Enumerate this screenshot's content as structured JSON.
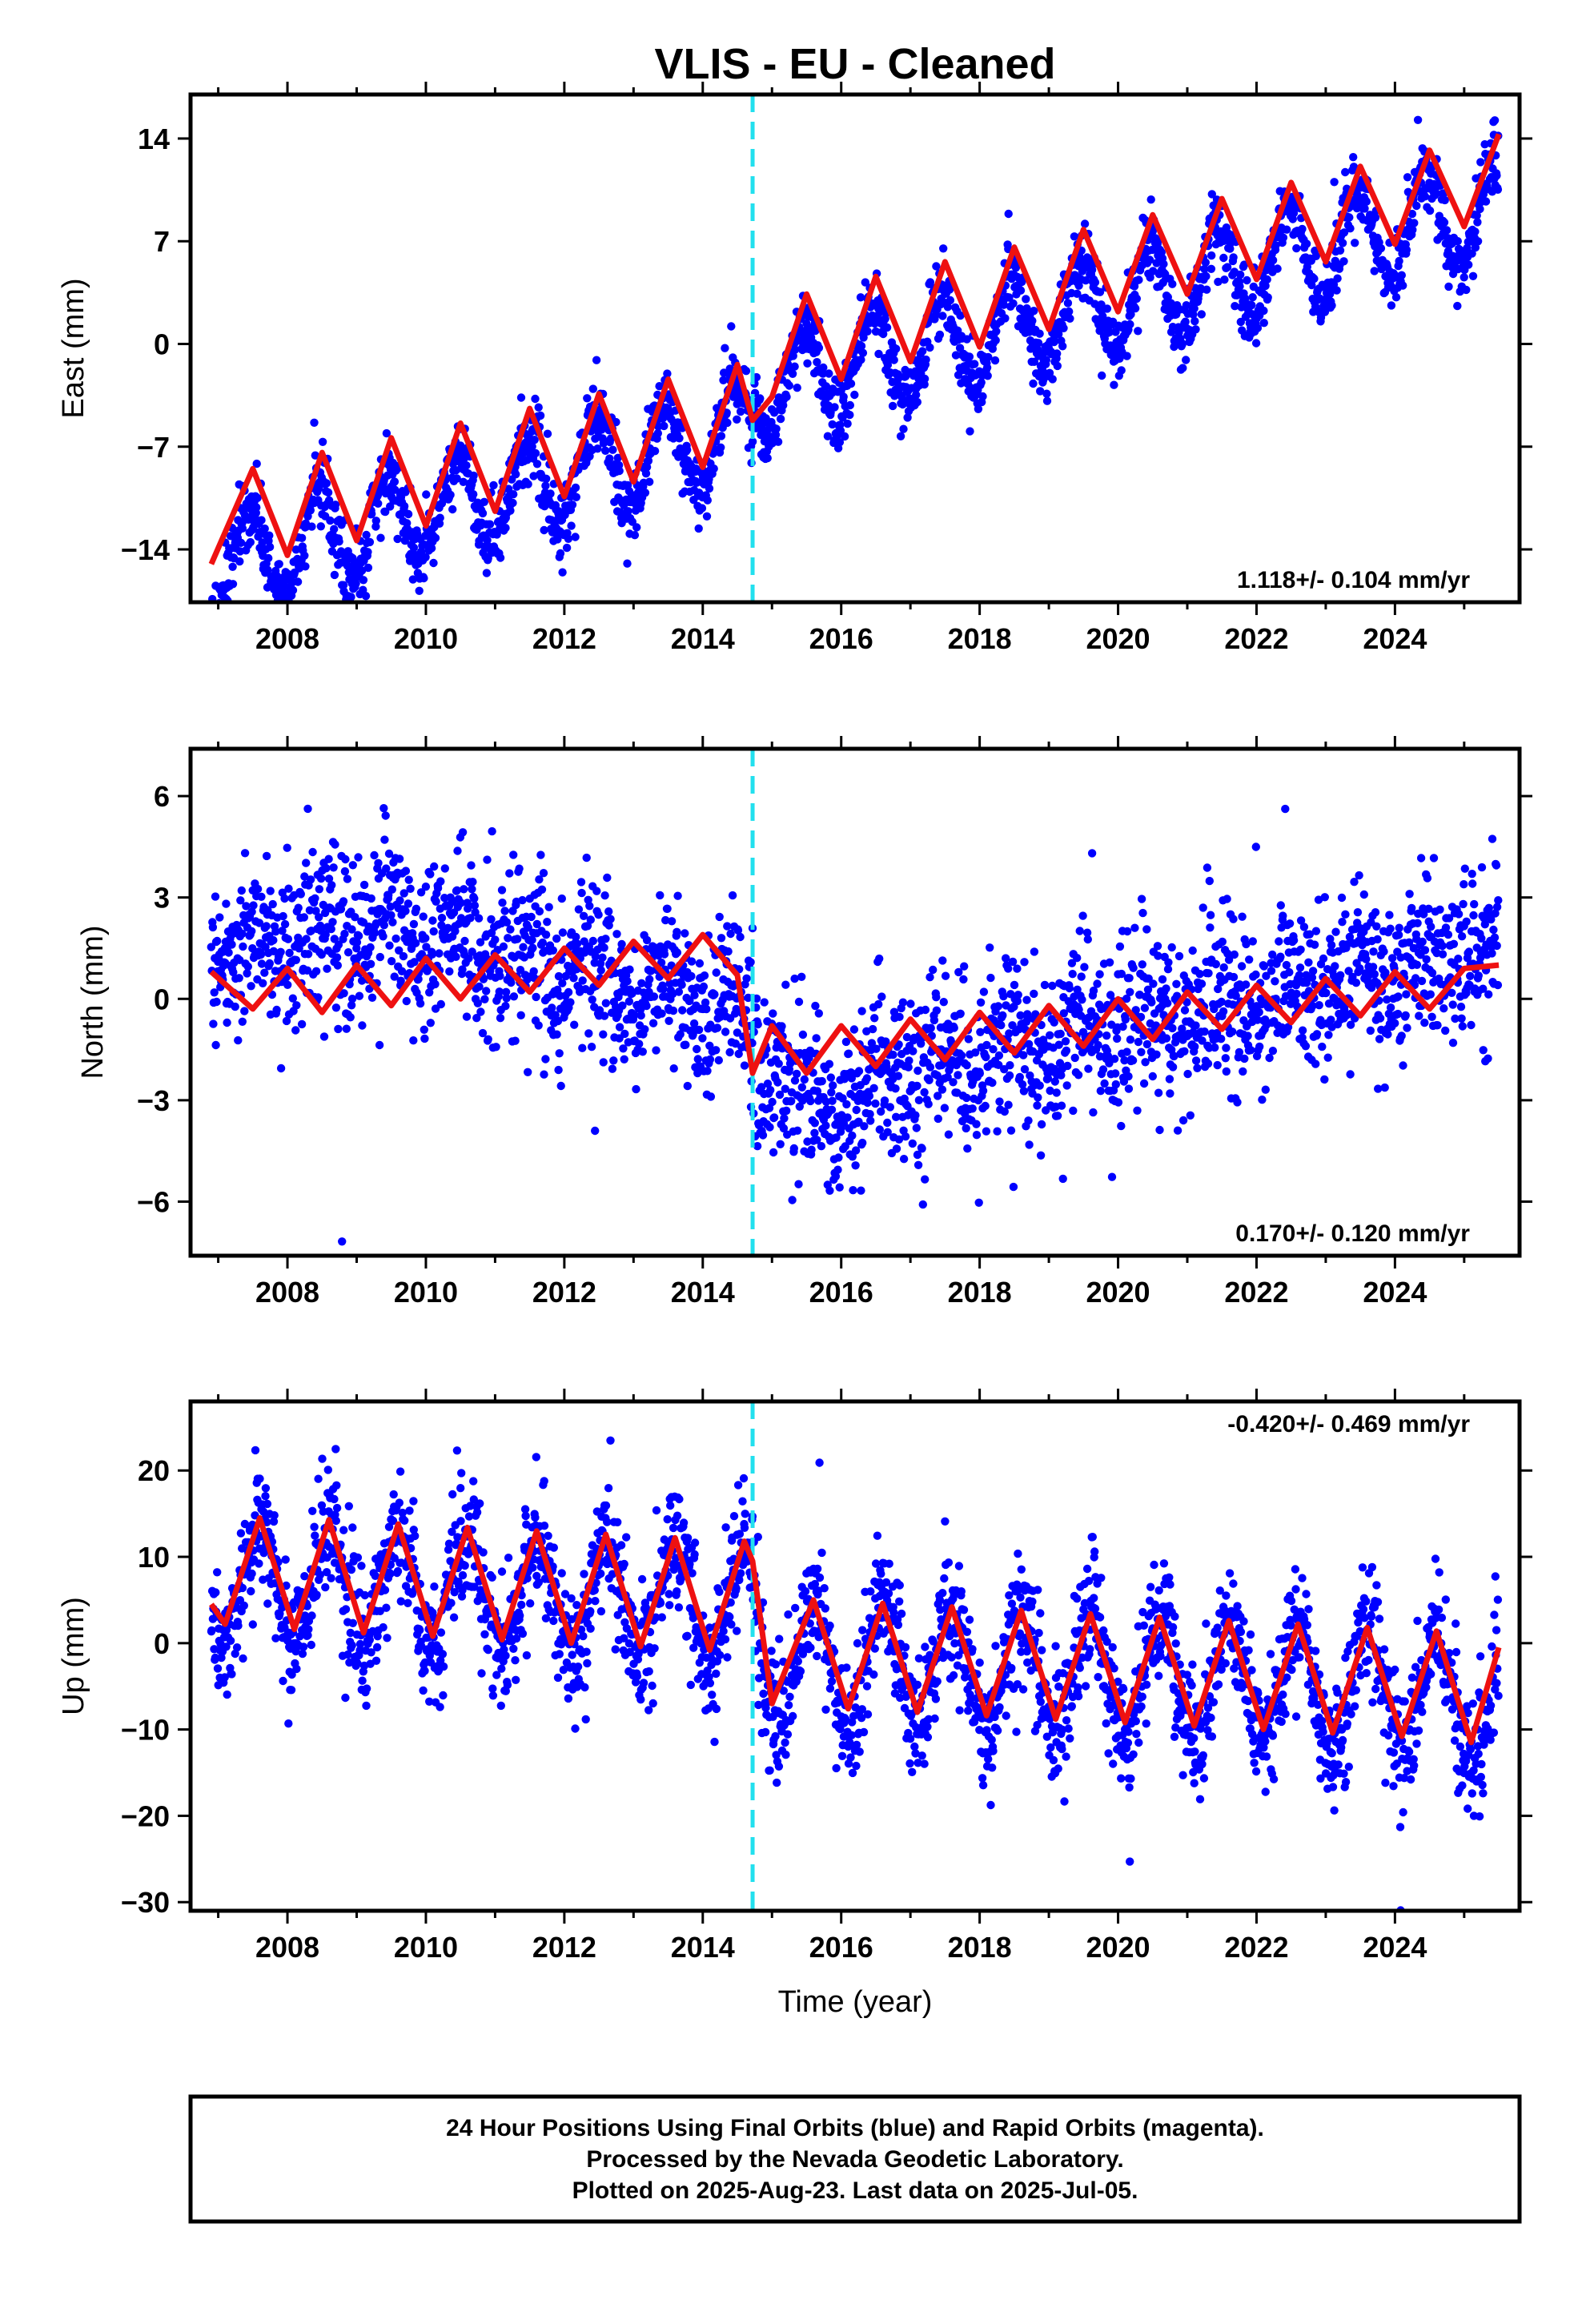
{
  "colors": {
    "final_orbit_points": "#0000ff",
    "model_fit": "#ee1111",
    "offset_marker": "#22e0ee",
    "frame": "#000000"
  },
  "chart_data": [
    {
      "type": "scatter",
      "panel": "east",
      "title": "VLIS  - EU - Cleaned",
      "ylabel": "East (mm)",
      "xlabel": "",
      "xlim": [
        2006.6,
        2025.8
      ],
      "ylim": [
        -17.6,
        17.0
      ],
      "xticks": [
        2008,
        2010,
        2012,
        2014,
        2016,
        2018,
        2020,
        2022,
        2024
      ],
      "yticks": [
        -14,
        -7,
        0,
        7,
        14
      ],
      "ytick_labels": [
        "−14",
        "−7",
        "0",
        "7",
        "14"
      ],
      "rate_label": "1.118+/- 0.104 mm/yr",
      "rate_position": "bottom-right",
      "offset_epochs": [
        2014.72
      ],
      "series": [
        {
          "role": "daily-positions",
          "color": "#0000ff",
          "marker": "dot",
          "x_start": 2006.9,
          "x_end": 2025.5,
          "trend": [
            [
              2006.9,
              -15.0
            ],
            [
              2014.7,
              -5.8
            ],
            [
              2014.75,
              -3.2
            ],
            [
              2025.5,
              9.5
            ]
          ],
          "annual_amplitude": 3.3,
          "peak_phase": 0.45,
          "scatter_sd": 1.2
        },
        {
          "role": "model-fit",
          "color": "#ee1111",
          "points": [
            [
              2006.9,
              -15.0
            ],
            [
              2007.5,
              -8.5
            ],
            [
              2008.0,
              -14.4
            ],
            [
              2008.5,
              -7.4
            ],
            [
              2009.0,
              -13.4
            ],
            [
              2009.5,
              -6.4
            ],
            [
              2010.0,
              -12.4
            ],
            [
              2010.5,
              -5.4
            ],
            [
              2011.0,
              -11.4
            ],
            [
              2011.5,
              -4.4
            ],
            [
              2012.0,
              -10.4
            ],
            [
              2012.5,
              -3.4
            ],
            [
              2013.0,
              -9.4
            ],
            [
              2013.5,
              -2.4
            ],
            [
              2014.0,
              -8.4
            ],
            [
              2014.5,
              -1.4
            ],
            [
              2014.72,
              -5.2
            ],
            [
              2015.0,
              -3.6
            ],
            [
              2015.5,
              3.4
            ],
            [
              2016.0,
              -2.4
            ],
            [
              2016.5,
              4.6
            ],
            [
              2017.0,
              -1.2
            ],
            [
              2017.5,
              5.6
            ],
            [
              2018.0,
              -0.2
            ],
            [
              2018.5,
              6.6
            ],
            [
              2019.0,
              1.0
            ],
            [
              2019.5,
              7.8
            ],
            [
              2020.0,
              2.2
            ],
            [
              2020.5,
              8.8
            ],
            [
              2021.0,
              3.4
            ],
            [
              2021.5,
              9.9
            ],
            [
              2022.0,
              4.4
            ],
            [
              2022.5,
              11.0
            ],
            [
              2023.0,
              5.6
            ],
            [
              2023.5,
              12.1
            ],
            [
              2024.0,
              6.8
            ],
            [
              2024.5,
              13.2
            ],
            [
              2025.0,
              8.0
            ],
            [
              2025.5,
              14.3
            ]
          ]
        }
      ]
    },
    {
      "type": "scatter",
      "panel": "north",
      "title": "",
      "ylabel": "North (mm)",
      "xlabel": "",
      "xlim": [
        2006.6,
        2025.8
      ],
      "ylim": [
        -7.6,
        7.4
      ],
      "xticks": [
        2008,
        2010,
        2012,
        2014,
        2016,
        2018,
        2020,
        2022,
        2024
      ],
      "yticks": [
        -6,
        -3,
        0,
        3,
        6
      ],
      "ytick_labels": [
        "−6",
        "−3",
        "0",
        "3",
        "6"
      ],
      "rate_label": "0.170+/- 0.120 mm/yr",
      "rate_position": "bottom-right",
      "offset_epochs": [
        2014.72
      ],
      "series": [
        {
          "role": "daily-positions",
          "color": "#0000ff",
          "marker": "dot",
          "x_start": 2006.9,
          "x_end": 2025.5,
          "trend": [
            [
              2006.9,
              1.0
            ],
            [
              2009.0,
              2.3
            ],
            [
              2012.0,
              1.0
            ],
            [
              2014.7,
              -0.5
            ],
            [
              2014.75,
              -1.5
            ],
            [
              2015.6,
              -3.5
            ],
            [
              2017.0,
              -2.0
            ],
            [
              2020.0,
              -0.8
            ],
            [
              2023.0,
              0.5
            ],
            [
              2025.5,
              1.5
            ]
          ],
          "annual_amplitude": 0.6,
          "peak_phase": 0.45,
          "scatter_sd": 1.2
        },
        {
          "role": "model-fit",
          "color": "#ee1111",
          "points": [
            [
              2006.9,
              0.8
            ],
            [
              2007.5,
              -0.3
            ],
            [
              2008.0,
              0.9
            ],
            [
              2008.5,
              -0.4
            ],
            [
              2009.0,
              1.0
            ],
            [
              2009.5,
              -0.2
            ],
            [
              2010.0,
              1.2
            ],
            [
              2010.5,
              0.0
            ],
            [
              2011.0,
              1.3
            ],
            [
              2011.5,
              0.2
            ],
            [
              2012.0,
              1.5
            ],
            [
              2012.5,
              0.4
            ],
            [
              2013.0,
              1.7
            ],
            [
              2013.5,
              0.6
            ],
            [
              2014.0,
              1.9
            ],
            [
              2014.5,
              0.7
            ],
            [
              2014.72,
              -2.2
            ],
            [
              2015.0,
              -0.8
            ],
            [
              2015.5,
              -2.2
            ],
            [
              2016.0,
              -0.8
            ],
            [
              2016.5,
              -2.0
            ],
            [
              2017.0,
              -0.6
            ],
            [
              2017.5,
              -1.8
            ],
            [
              2018.0,
              -0.4
            ],
            [
              2018.5,
              -1.6
            ],
            [
              2019.0,
              -0.2
            ],
            [
              2019.5,
              -1.4
            ],
            [
              2020.0,
              0.0
            ],
            [
              2020.5,
              -1.2
            ],
            [
              2021.0,
              0.2
            ],
            [
              2021.5,
              -0.9
            ],
            [
              2022.0,
              0.4
            ],
            [
              2022.5,
              -0.7
            ],
            [
              2023.0,
              0.6
            ],
            [
              2023.5,
              -0.5
            ],
            [
              2024.0,
              0.8
            ],
            [
              2024.5,
              -0.3
            ],
            [
              2025.0,
              0.9
            ],
            [
              2025.5,
              1.0
            ]
          ]
        }
      ]
    },
    {
      "type": "scatter",
      "panel": "up",
      "title": "",
      "ylabel": "Up (mm)",
      "xlabel": "Time (year)",
      "xlim": [
        2006.6,
        2025.8
      ],
      "ylim": [
        -31,
        28
      ],
      "xticks": [
        2008,
        2010,
        2012,
        2014,
        2016,
        2018,
        2020,
        2022,
        2024
      ],
      "yticks": [
        -30,
        -20,
        -10,
        0,
        10,
        20
      ],
      "ytick_labels": [
        "−30",
        "−20",
        "−10",
        "0",
        "10",
        "20"
      ],
      "rate_label": "-0.420+/- 0.469 mm/yr",
      "rate_position": "top-right",
      "offset_epochs": [
        2014.72
      ],
      "series": [
        {
          "role": "daily-positions",
          "color": "#0000ff",
          "marker": "dot",
          "x_start": 2006.9,
          "x_end": 2025.5,
          "trend": [
            [
              2006.9,
              7.0
            ],
            [
              2014.7,
              5.0
            ],
            [
              2014.75,
              -1.5
            ],
            [
              2020.0,
              -3.5
            ],
            [
              2025.5,
              -6.5
            ]
          ],
          "annual_amplitude": 7.0,
          "peak_phase": 0.6,
          "scatter_sd": 3.5
        },
        {
          "role": "model-fit",
          "color": "#ee1111",
          "points": [
            [
              2006.9,
              4.5
            ],
            [
              2007.1,
              2.2
            ],
            [
              2007.6,
              14.5
            ],
            [
              2008.1,
              1.6
            ],
            [
              2008.6,
              14.3
            ],
            [
              2009.1,
              1.2
            ],
            [
              2009.6,
              13.8
            ],
            [
              2010.1,
              0.8
            ],
            [
              2010.6,
              13.4
            ],
            [
              2011.1,
              0.4
            ],
            [
              2011.6,
              13.0
            ],
            [
              2012.1,
              0.0
            ],
            [
              2012.6,
              12.6
            ],
            [
              2013.1,
              -0.4
            ],
            [
              2013.6,
              12.2
            ],
            [
              2014.1,
              -0.8
            ],
            [
              2014.6,
              11.8
            ],
            [
              2014.72,
              9.5
            ],
            [
              2015.0,
              -7.0
            ],
            [
              2015.6,
              5.0
            ],
            [
              2016.1,
              -7.6
            ],
            [
              2016.6,
              4.6
            ],
            [
              2017.1,
              -8.0
            ],
            [
              2017.6,
              4.2
            ],
            [
              2018.1,
              -8.4
            ],
            [
              2018.6,
              3.8
            ],
            [
              2019.1,
              -8.8
            ],
            [
              2019.6,
              3.4
            ],
            [
              2020.1,
              -9.2
            ],
            [
              2020.6,
              3.0
            ],
            [
              2021.1,
              -9.6
            ],
            [
              2021.6,
              2.6
            ],
            [
              2022.1,
              -10.0
            ],
            [
              2022.6,
              2.2
            ],
            [
              2023.1,
              -10.4
            ],
            [
              2023.6,
              1.8
            ],
            [
              2024.1,
              -10.8
            ],
            [
              2024.6,
              1.4
            ],
            [
              2025.1,
              -11.5
            ],
            [
              2025.5,
              -0.5
            ]
          ]
        }
      ]
    }
  ],
  "footer": {
    "line1": "24 Hour Positions Using Final Orbits (blue) and Rapid Orbits (magenta).",
    "line2": "Processed by the Nevada Geodetic Laboratory.",
    "line3": "Plotted on 2025-Aug-23. Last data on 2025-Jul-05."
  }
}
